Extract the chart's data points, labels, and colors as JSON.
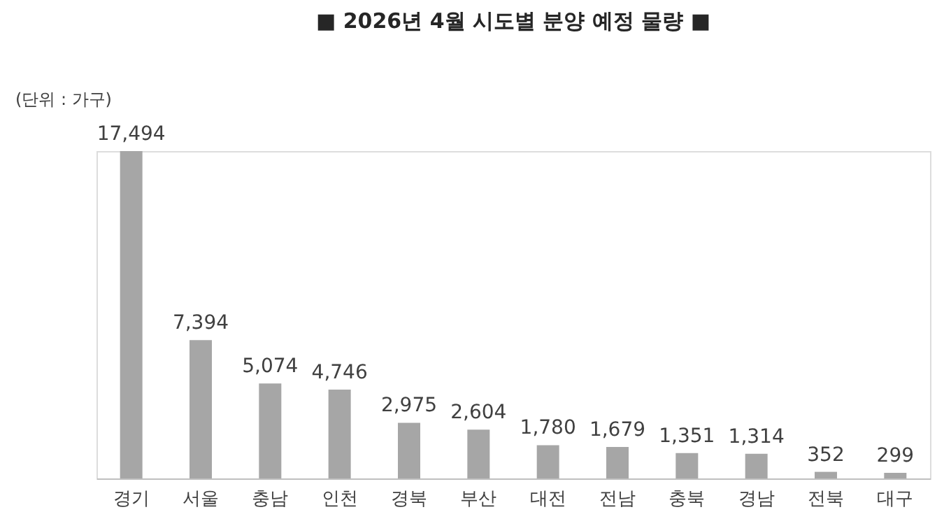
{
  "chart_data": {
    "type": "bar",
    "title": "■ 2026년 4월 시도별 분양 예정 물량 ■",
    "annotations": [
      "(단위 : 가구)"
    ],
    "categories": [
      "경기",
      "서울",
      "충남",
      "인천",
      "경북",
      "부산",
      "대전",
      "전남",
      "충북",
      "경남",
      "전북",
      "대구"
    ],
    "values": [
      17494,
      7394,
      5074,
      4746,
      2975,
      2604,
      1780,
      1679,
      1351,
      1314,
      352,
      299
    ],
    "value_labels": [
      "17,494",
      "7,394",
      "5,074",
      "4,746",
      "2,975",
      "2,604",
      "1,780",
      "1,679",
      "1,351",
      "1,314",
      "352",
      "299"
    ],
    "color": "#a6a6a6"
  }
}
